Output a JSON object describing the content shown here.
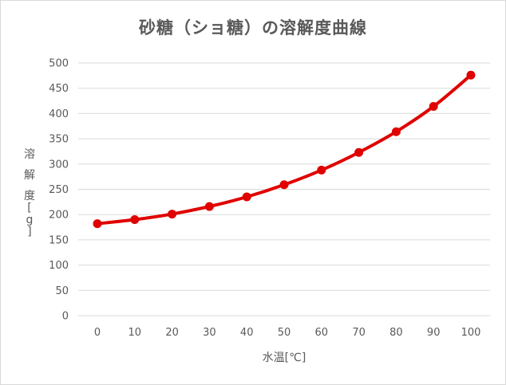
{
  "chart_data": {
    "type": "line",
    "title": "砂糖（ショ糖）の溶解度曲線",
    "xlabel": "水温[℃]",
    "ylabel": "溶解度[g]",
    "x": [
      0,
      10,
      20,
      30,
      40,
      50,
      60,
      70,
      80,
      90,
      100
    ],
    "series": [
      {
        "values": [
          182,
          190,
          201,
          216,
          235,
          259,
          288,
          323,
          364,
          414,
          476
        ]
      }
    ],
    "xticks": [
      "0",
      "10",
      "20",
      "30",
      "40",
      "50",
      "60",
      "70",
      "80",
      "90",
      "100"
    ],
    "yticks": [
      "0",
      "50",
      "100",
      "150",
      "200",
      "250",
      "300",
      "350",
      "400",
      "450",
      "500"
    ],
    "ylim": [
      0,
      500
    ],
    "grid": true,
    "legend": "none",
    "colors": {
      "line": "#e00000",
      "grid": "#d9d9d9",
      "text": "#595959"
    }
  }
}
